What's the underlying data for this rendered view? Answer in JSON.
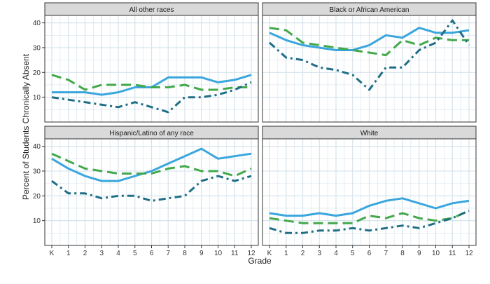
{
  "figure": {
    "ylabel": "Percent of Students Chronically Absent",
    "xlabel": "Grade"
  },
  "colors": {
    "series_light_blue": "#3aa6dd",
    "series_green": "#43a84a",
    "series_dark_teal": "#1f6e86",
    "strip_fill": "#d9d9d9",
    "grid": "#d5e3ec",
    "panel_border": "#333333"
  },
  "chart_data": {
    "type": "line",
    "facets": [
      "All other races",
      "Black or African American",
      "Hispanic/Latino of any race",
      "White"
    ],
    "categories": [
      "K",
      "1",
      "2",
      "3",
      "4",
      "5",
      "6",
      "7",
      "8",
      "9",
      "10",
      "11",
      "12"
    ],
    "ylim": [
      0,
      43
    ],
    "yticks": [
      10,
      20,
      30,
      40
    ],
    "xlabel": "Grade",
    "ylabel": "Percent of Students Chronically Absent",
    "grid": true,
    "legend": "bottom (cropped)",
    "panels": [
      {
        "title": "All other races",
        "series": [
          {
            "style": "solid",
            "color": "#3aa6dd",
            "values": [
              12,
              12,
              12,
              11,
              12,
              14,
              14,
              18,
              18,
              18,
              16,
              17,
              19
            ]
          },
          {
            "style": "longdash",
            "color": "#43a84a",
            "values": [
              19,
              17,
              13,
              15,
              15,
              15,
              14,
              14,
              15,
              13,
              13,
              14,
              14
            ]
          },
          {
            "style": "dotdash",
            "color": "#1f6e86",
            "values": [
              10,
              9,
              8,
              7,
              6,
              8,
              6,
              4,
              10,
              10,
              11,
              13,
              16
            ]
          }
        ]
      },
      {
        "title": "Black or African American",
        "series": [
          {
            "style": "solid",
            "color": "#3aa6dd",
            "values": [
              36,
              33,
              31,
              30,
              29,
              29,
              31,
              35,
              34,
              38,
              36,
              36,
              37
            ]
          },
          {
            "style": "longdash",
            "color": "#43a84a",
            "values": [
              38,
              37,
              32,
              31,
              30,
              29,
              28,
              27,
              33,
              31,
              34,
              33,
              33
            ]
          },
          {
            "style": "dotdash",
            "color": "#1f6e86",
            "values": [
              32,
              26,
              25,
              22,
              21,
              19,
              13,
              22,
              22,
              29,
              32,
              41,
              31
            ]
          }
        ]
      },
      {
        "title": "Hispanic/Latino of any race",
        "series": [
          {
            "style": "solid",
            "color": "#3aa6dd",
            "values": [
              35,
              31,
              28,
              26,
              26,
              28,
              30,
              33,
              36,
              39,
              35,
              36,
              37
            ]
          },
          {
            "style": "longdash",
            "color": "#43a84a",
            "values": [
              37,
              34,
              31,
              30,
              29,
              29,
              29,
              31,
              32,
              30,
              30,
              28,
              31
            ]
          },
          {
            "style": "dotdash",
            "color": "#1f6e86",
            "values": [
              26,
              21,
              21,
              19,
              20,
              20,
              18,
              19,
              20,
              26,
              28,
              26,
              28
            ]
          }
        ]
      },
      {
        "title": "White",
        "series": [
          {
            "style": "solid",
            "color": "#3aa6dd",
            "values": [
              13,
              12,
              12,
              13,
              12,
              13,
              16,
              18,
              19,
              17,
              15,
              17,
              18
            ]
          },
          {
            "style": "longdash",
            "color": "#43a84a",
            "values": [
              11,
              10,
              9,
              9,
              9,
              9,
              12,
              11,
              13,
              11,
              10,
              11,
              14
            ]
          },
          {
            "style": "dotdash",
            "color": "#1f6e86",
            "values": [
              7,
              5,
              5,
              6,
              6,
              7,
              6,
              7,
              8,
              7,
              9,
              11,
              14
            ]
          }
        ]
      }
    ]
  }
}
